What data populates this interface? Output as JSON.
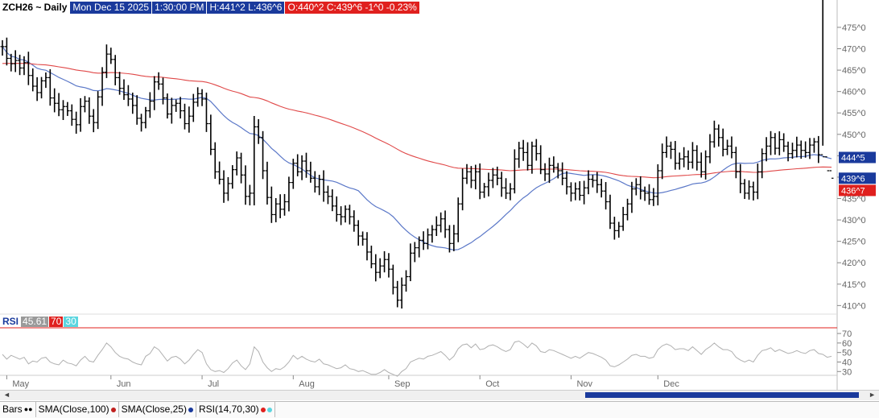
{
  "header": {
    "symbol": "ZCH26 ~ Daily",
    "datetime": "Mon Dec 15 2025",
    "time": "1:30:00 PM",
    "hl": "H:441^2  L:436^6",
    "oc": "O:440^2  C:439^6  -1^0  -0.23%"
  },
  "rsi_header": {
    "label": "RSI",
    "value": "45.61",
    "upper": "70",
    "lower": "30"
  },
  "tabs": [
    "Bars",
    "SMA(Close,100)",
    "SMA(Close,25)",
    "RSI(14,70,30)"
  ],
  "colors": {
    "sma100": "#e04848",
    "sma25": "#5b78c8",
    "rsi": "#b0b0b0",
    "blue_tag": "#1a3a9c",
    "red_tag": "#e0201e"
  },
  "chart_data": [
    {
      "type": "ohlc",
      "ylim": [
        408,
        478
      ],
      "yticks": [
        "475^0",
        "470^0",
        "465^0",
        "460^0",
        "455^0",
        "450^0",
        "445^0",
        "440^0",
        "435^0",
        "430^0",
        "425^0",
        "420^0",
        "415^0",
        "410^0"
      ],
      "xticks": [
        "May",
        "Jun",
        "Jul",
        "Aug",
        "Sep",
        "Oct",
        "Nov",
        "Dec"
      ],
      "price_tags": [
        {
          "label": "444^5",
          "value": 444.6,
          "color": "#1a3a9c"
        },
        {
          "label": "439^6",
          "value": 439.75,
          "color": "#1a3a9c"
        },
        {
          "label": "436^7",
          "value": 436.9,
          "color": "#e0201e"
        }
      ],
      "close": [
        470.5,
        467.75,
        466.5,
        467.25,
        465.5,
        466.75,
        463.75,
        461.25,
        459.75,
        462.5,
        463.25,
        458.5,
        457.25,
        455.75,
        456.5,
        455.5,
        453.5,
        452.25,
        456.5,
        457.75,
        454.25,
        452.75,
        458.75,
        464.5,
        468.75,
        467.5,
        463.25,
        460.75,
        459.25,
        458.25,
        456.75,
        453.75,
        452.75,
        455.5,
        457.75,
        462.25,
        461.75,
        458.5,
        454.75,
        456.75,
        457.25,
        455.5,
        452.5,
        454.25,
        457.5,
        459.5,
        458.25,
        452.5,
        446.5,
        441.25,
        439.5,
        436.25,
        438.5,
        441.75,
        444.5,
        440.5,
        435.5,
        436.25,
        451.75,
        449.25,
        441.5,
        435.25,
        431.25,
        433.75,
        432.5,
        434.25,
        438.75,
        443.25,
        441.25,
        443.75,
        441.5,
        439.75,
        437.75,
        439.5,
        436.5,
        435.5,
        433.25,
        431.25,
        430.75,
        432.5,
        430.75,
        428.75,
        426.25,
        425.5,
        422.5,
        419.75,
        417.75,
        419.25,
        420.75,
        418.5,
        414.25,
        411.25,
        414.75,
        416.75,
        422.25,
        423.5,
        425.25,
        424.5,
        426.5,
        427.75,
        428.75,
        430.25,
        427.75,
        424.5,
        426.75,
        433.75,
        439.75,
        441.25,
        439.25,
        441.25,
        436.5,
        437.75,
        439.25,
        440.5,
        439.75,
        437.5,
        436.25,
        437.25,
        444.25,
        446.75,
        445.75,
        442.75,
        447.25,
        445.5,
        441.75,
        440.75,
        442.75,
        442.25,
        441.5,
        439.75,
        437.75,
        436.25,
        437.25,
        435.75,
        437.5,
        439.5,
        439.25,
        438.25,
        436.75,
        434.25,
        429.25,
        427.5,
        428.5,
        431.25,
        433.75,
        437.25,
        438.25,
        436.75,
        436.25,
        434.75,
        435.5,
        441.5,
        445.75,
        447.25,
        446.5,
        443.25,
        444.25,
        444.75,
        443.5,
        446.25,
        443.5,
        441.25,
        444.75,
        448.25,
        451.25,
        449.25,
        446.5,
        447.25,
        445.75,
        441.25,
        438.5,
        436.25,
        437.75,
        436.5,
        441.25,
        445.5,
        447.25,
        449.25,
        446.75,
        448.75,
        447.25,
        445.5,
        446.25,
        447.5,
        446.25,
        445.75,
        447.5,
        448.25,
        445.25,
        444.75,
        441.5,
        439.75
      ],
      "high_offset": [
        2.5,
        3.5,
        1.75,
        4.0,
        2.25,
        2.5,
        4.25,
        2.75,
        3.5,
        1.5,
        2.0,
        3.25,
        3.75,
        4.0,
        2.5,
        1.75,
        2.5,
        3.0,
        3.25,
        2.0,
        1.5,
        2.75,
        2.25,
        2.0,
        3.75,
        2.5,
        1.75,
        2.25,
        3.5,
        3.75,
        2.5,
        4.0,
        1.75,
        1.5,
        3.5,
        2.25,
        3.75,
        2.5,
        1.75,
        3.0,
        1.5,
        2.5,
        2.75,
        3.75,
        3.25,
        2.5,
        1.75,
        2.5,
        3.5,
        2.75,
        4.0,
        3.5,
        2.5,
        1.75,
        2.5,
        2.0,
        3.75,
        3.25,
        4.25,
        3.0,
        2.5,
        3.5,
        4.25,
        2.25,
        3.75,
        3.0,
        2.25,
        1.75,
        3.5,
        2.25,
        3.25,
        3.5,
        2.75,
        1.75,
        3.5,
        2.5,
        2.75,
        3.75,
        3.25,
        1.5,
        1.75,
        2.5,
        2.0,
        1.75,
        2.75,
        2.5,
        3.75,
        3.0,
        3.25,
        2.5,
        1.75,
        2.5,
        3.0,
        2.5,
        3.75,
        2.25,
        1.5,
        3.5,
        2.5,
        1.75,
        3.5,
        2.5,
        3.25,
        1.75,
        3.5,
        2.5,
        3.75,
        3.0,
        2.25,
        2.75,
        3.25,
        1.5,
        3.0,
        2.75,
        3.25,
        2.5,
        3.75,
        2.25,
        3.75,
        2.5,
        3.25,
        4.0,
        1.75,
        2.75,
        3.25,
        2.5,
        3.0,
        3.5,
        1.75,
        3.25,
        2.75,
        1.75,
        2.5,
        3.0,
        2.75,
        3.5,
        1.75,
        3.25,
        2.25,
        3.5,
        2.75,
        2.5,
        1.75,
        3.0,
        2.0,
        2.75,
        2.5,
        3.25,
        1.75,
        3.5,
        3.25,
        2.5,
        3.5,
        3.75,
        1.75,
        3.25,
        2.5,
        3.75,
        2.5,
        3.25,
        2.0,
        3.75,
        2.5,
        3.0,
        3.25,
        1.75,
        3.5,
        2.5,
        3.75,
        2.25,
        3.0,
        1.75,
        2.5,
        2.0,
        3.25,
        2.0,
        3.5,
        2.5,
        1.75,
        3.25,
        2.5,
        1.75,
        3.0,
        3.25,
        1.75,
        3.5,
        2.75,
        1.5,
        2.25,
        3.5
      ],
      "low_offset": [
        3.5,
        2.75,
        3.0,
        3.25,
        2.75,
        2.75,
        3.75,
        2.0,
        3.25,
        2.25,
        2.75,
        3.0,
        3.5,
        2.5,
        4.0,
        2.0,
        2.5,
        3.5,
        2.75,
        2.25,
        3.0,
        3.75,
        2.5,
        3.5,
        2.25,
        1.75,
        3.0,
        2.5,
        2.0,
        2.75,
        3.25,
        2.5,
        3.5,
        2.25,
        2.75,
        3.5,
        2.25,
        2.5,
        1.75,
        3.75,
        2.5,
        3.0,
        2.25,
        3.5,
        2.25,
        1.75,
        2.75,
        3.25,
        2.25,
        2.75,
        2.0,
        3.75,
        3.0,
        2.0,
        2.25,
        3.25,
        3.25,
        3.5,
        4.75,
        2.5,
        3.25,
        2.75,
        3.25,
        3.0,
        3.5,
        2.5,
        3.75,
        2.5,
        1.75,
        3.25,
        2.75,
        1.75,
        2.25,
        3.25,
        3.75,
        3.0,
        2.0,
        2.75,
        3.25,
        2.25,
        3.0,
        2.5,
        3.75,
        2.5,
        3.25,
        1.75,
        3.5,
        2.25,
        2.5,
        3.25,
        2.75,
        2.75,
        3.25,
        2.5,
        1.75,
        3.5,
        3.75,
        2.5,
        2.25,
        3.0,
        2.5,
        2.75,
        3.25,
        3.5,
        3.0,
        3.25,
        2.5,
        2.25,
        3.0,
        3.5,
        2.75,
        2.25,
        3.75,
        3.0,
        2.75,
        3.5,
        2.25,
        2.75,
        1.75,
        3.5,
        3.25,
        2.0,
        3.25,
        2.75,
        1.75,
        2.75,
        3.5,
        2.0,
        3.0,
        2.75,
        3.0,
        3.25,
        2.75,
        2.0,
        3.5,
        2.5,
        2.75,
        3.25,
        2.5,
        3.0,
        2.25,
        3.5,
        2.75,
        1.75,
        2.25,
        3.5,
        2.5,
        3.25,
        3.0,
        2.0,
        2.5,
        3.5,
        3.25,
        2.0,
        3.75,
        2.5,
        2.5,
        3.25,
        3.0,
        2.5,
        3.25,
        2.25,
        3.0,
        2.5,
        2.25,
        3.5,
        2.75,
        2.25,
        2.25,
        2.5,
        3.75,
        2.25,
        2.5,
        3.25,
        2.75,
        2.5,
        3.0,
        3.5,
        2.5,
        2.75,
        2.25,
        3.0,
        2.0,
        2.75,
        3.25,
        2.0,
        2.5,
        3.0,
        3.25
      ]
    },
    {
      "type": "line",
      "ylim": [
        26,
        76
      ],
      "yticks": [
        "70",
        "60",
        "50",
        "40",
        "30"
      ],
      "series": [
        {
          "name": "RSI",
          "values": [
            48,
            43,
            47,
            45,
            43,
            45,
            38,
            41,
            40,
            44,
            45,
            40,
            38,
            37,
            42,
            39,
            38,
            36,
            42,
            46,
            41,
            40,
            47,
            53,
            60,
            56,
            50,
            46,
            44,
            43,
            40,
            38,
            37,
            46,
            49,
            56,
            53,
            47,
            41,
            45,
            46,
            43,
            38,
            42,
            48,
            53,
            50,
            38,
            32,
            30,
            31,
            29,
            33,
            39,
            42,
            36,
            32,
            38,
            56,
            51,
            40,
            34,
            30,
            33,
            32,
            35,
            40,
            47,
            43,
            46,
            43,
            41,
            40,
            43,
            38,
            37,
            35,
            33,
            34,
            37,
            33,
            32,
            30,
            31,
            29,
            27,
            27,
            29,
            32,
            29,
            27,
            25,
            30,
            33,
            40,
            42,
            44,
            43,
            46,
            47,
            49,
            51,
            47,
            42,
            46,
            54,
            58,
            59,
            55,
            59,
            53,
            54,
            57,
            58,
            56,
            53,
            51,
            53,
            61,
            62,
            59,
            55,
            60,
            57,
            51,
            50,
            53,
            52,
            50,
            48,
            46,
            44,
            46,
            44,
            47,
            50,
            49,
            47,
            45,
            42,
            36,
            35,
            37,
            40,
            43,
            47,
            48,
            46,
            46,
            44,
            45,
            53,
            57,
            59,
            57,
            53,
            54,
            54,
            52,
            56,
            52,
            48,
            53,
            56,
            60,
            56,
            53,
            53,
            51,
            45,
            42,
            40,
            42,
            40,
            47,
            52,
            53,
            55,
            51,
            53,
            51,
            49,
            50,
            52,
            50,
            49,
            52,
            53,
            49,
            48,
            45,
            46
          ]
        }
      ]
    }
  ]
}
